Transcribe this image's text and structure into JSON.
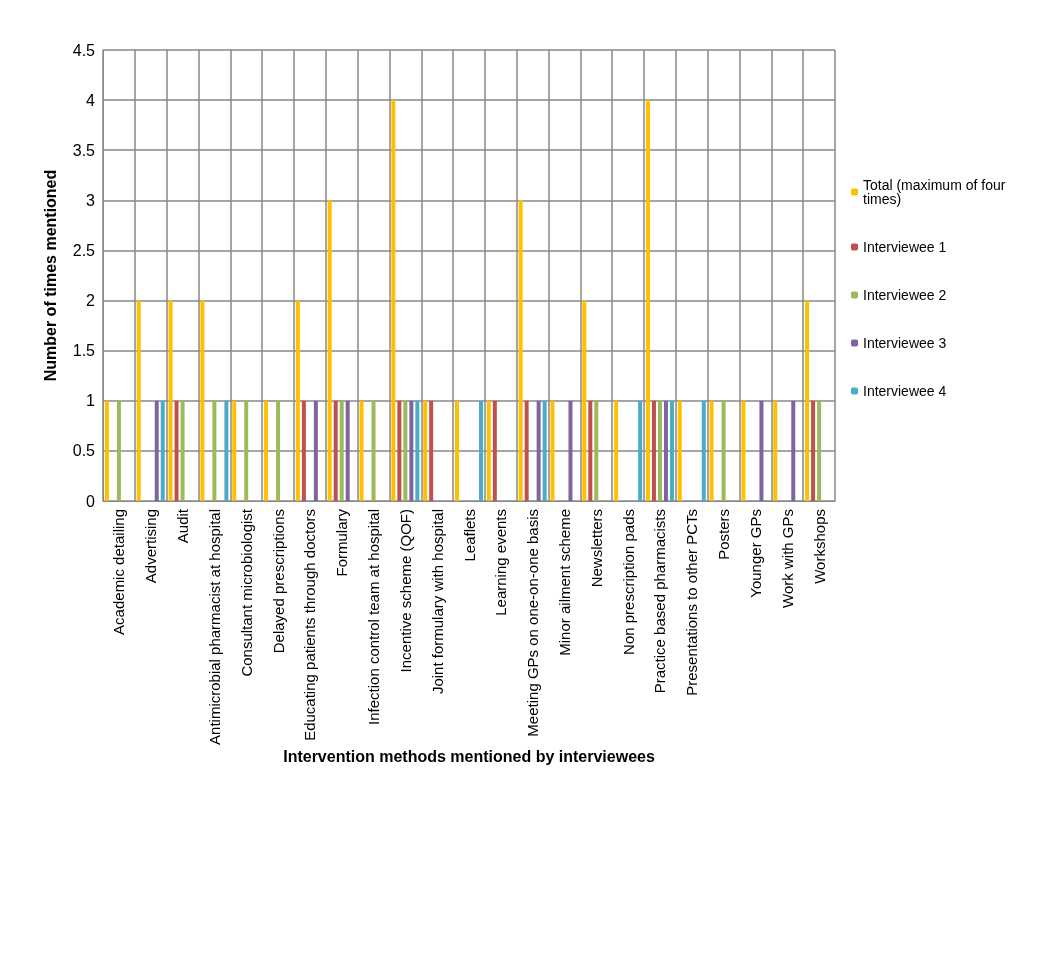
{
  "chart_data": {
    "type": "bar",
    "xlabel": "Intervention methods mentioned by interviewees",
    "ylabel": "Number of times mentioned",
    "categories": [
      "Academic detailing",
      "Advertising",
      "Audit",
      "Antimicrobial pharmacist at hospital",
      "Consultant microbiologist",
      "Delayed prescriptions",
      "Educating patients through doctors",
      "Formulary",
      "Infection control team at hospital",
      "Incentive scheme (QOF)",
      "Joint formulary with hospital",
      "Leaflets",
      "Learning events",
      "Meeting GPs on one-on-one basis",
      "Minor ailment scheme",
      "Newsletters",
      "Non prescription pads",
      "Practice based pharmacists",
      "Presentations to other PCTs",
      "Posters",
      "Younger GPs",
      "Work with GPs",
      "Workshops"
    ],
    "series": [
      {
        "name": "Total (maximum of four times)",
        "color": "#ffc000",
        "values": [
          1,
          2,
          2,
          2,
          1,
          1,
          2,
          3,
          1,
          4,
          1,
          1,
          1,
          3,
          1,
          2,
          1,
          4,
          1,
          1,
          1,
          1,
          2
        ]
      },
      {
        "name": "Interviewee 1",
        "color": "#c0504d",
        "values": [
          0,
          0,
          1,
          0,
          0,
          0,
          1,
          1,
          0,
          1,
          1,
          0,
          1,
          1,
          0,
          1,
          0,
          1,
          0,
          0,
          0,
          0,
          1
        ]
      },
      {
        "name": "Interviewee 2",
        "color": "#9bbb59",
        "values": [
          1,
          0,
          1,
          1,
          1,
          1,
          0,
          1,
          1,
          1,
          0,
          0,
          0,
          0,
          0,
          1,
          0,
          1,
          0,
          1,
          0,
          0,
          1
        ]
      },
      {
        "name": "Interviewee 3",
        "color": "#8064a2",
        "values": [
          0,
          1,
          0,
          0,
          0,
          0,
          1,
          1,
          0,
          1,
          0,
          0,
          0,
          1,
          1,
          0,
          0,
          1,
          0,
          0,
          1,
          1,
          0
        ]
      },
      {
        "name": "Interviewee 4",
        "color": "#4bacc6",
        "values": [
          0,
          1,
          0,
          1,
          0,
          0,
          0,
          0,
          0,
          1,
          0,
          1,
          0,
          1,
          0,
          0,
          1,
          1,
          1,
          0,
          0,
          0,
          0
        ]
      }
    ],
    "ylim": [
      0,
      4.5
    ],
    "yticks": [
      0,
      0.5,
      1,
      1.5,
      2,
      2.5,
      3,
      3.5,
      4,
      4.5
    ],
    "grid": true,
    "legend": "right"
  }
}
